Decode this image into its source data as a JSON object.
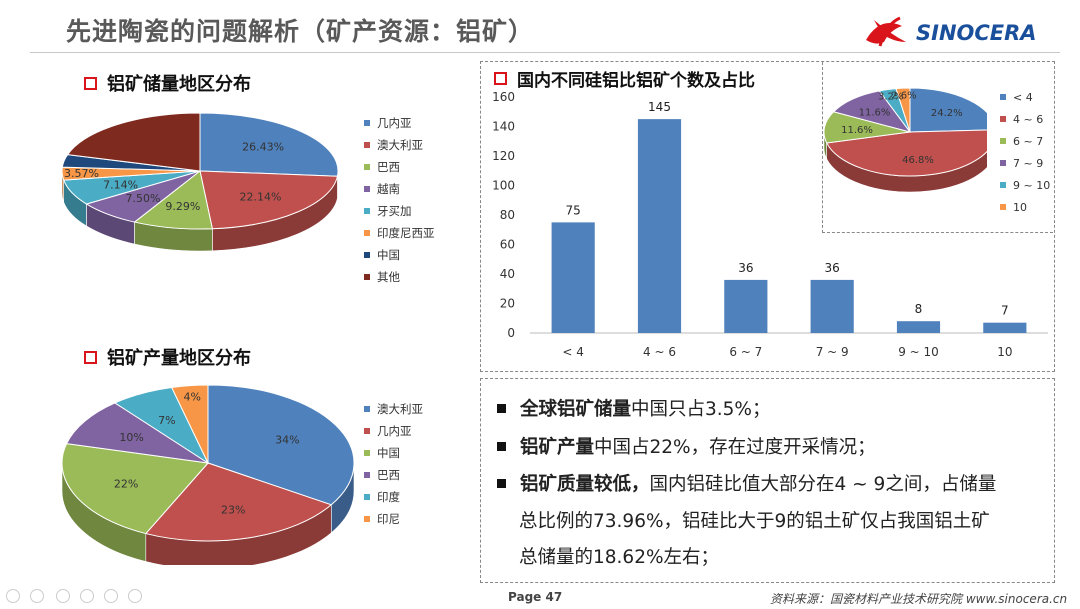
{
  "header": {
    "title": "先进陶瓷的问题解析（矿产资源：铝矿）",
    "logo_text": "SINOCERA"
  },
  "colors": {
    "blue": "#4f81bd",
    "red": "#c0504d",
    "green": "#9bbb59",
    "purple": "#8064a2",
    "cyan": "#4bacc6",
    "orange": "#f79646",
    "navy": "#1f497d",
    "maroon": "#7f2a1e",
    "accent_red": "#d9141b"
  },
  "section1": {
    "title": "铝矿储量地区分布"
  },
  "section2": {
    "title": "铝矿产量地区分布"
  },
  "section3": {
    "title": "国内不同硅铝比铝矿个数及占比"
  },
  "chart_data": [
    {
      "id": "reserves_pie",
      "type": "pie",
      "title": "铝矿储量地区分布",
      "labels": [
        "几内亚",
        "澳大利亚",
        "巴西",
        "越南",
        "牙买加",
        "印度尼西亚",
        "中国",
        "其他"
      ],
      "values": [
        26.43,
        22.14,
        9.29,
        7.5,
        7.14,
        3.57,
        3.5,
        20.43
      ],
      "value_labels": [
        "26.43%",
        "22.14%",
        "9.29%",
        "7.50%",
        "7.14%",
        "3.57%",
        "",
        ""
      ],
      "colors": [
        "#4f81bd",
        "#c0504d",
        "#9bbb59",
        "#8064a2",
        "#4bacc6",
        "#f79646",
        "#1f497d",
        "#7f2a1e"
      ],
      "legend": "right"
    },
    {
      "id": "production_pie",
      "type": "pie",
      "title": "铝矿产量地区分布",
      "labels": [
        "澳大利亚",
        "几内亚",
        "中国",
        "巴西",
        "印度",
        "印尼"
      ],
      "values": [
        34,
        23,
        22,
        10,
        7,
        4
      ],
      "value_labels": [
        "34%",
        "23%",
        "22%",
        "10%",
        "7%",
        "4%"
      ],
      "colors": [
        "#4f81bd",
        "#c0504d",
        "#9bbb59",
        "#8064a2",
        "#4bacc6",
        "#f79646"
      ],
      "legend": "right"
    },
    {
      "id": "ratio_bar",
      "type": "bar",
      "title": "国内不同硅铝比铝矿个数及占比",
      "categories": [
        "< 4",
        "4 ~ 6",
        "6 ~ 7",
        "7 ~ 9",
        "9 ~ 10",
        "10"
      ],
      "values": [
        75,
        145,
        36,
        36,
        8,
        7
      ],
      "ylim": [
        0,
        160
      ],
      "yticks": [
        0,
        20,
        40,
        60,
        80,
        100,
        120,
        140,
        160
      ],
      "color": "#4f81bd",
      "grid": false
    },
    {
      "id": "ratio_pie",
      "type": "pie",
      "labels": [
        "< 4",
        "4 ~ 6",
        "6 ~ 7",
        "7 ~ 9",
        "9 ~ 10",
        "10"
      ],
      "values": [
        24.2,
        46.8,
        11.6,
        11.6,
        3.2,
        2.6
      ],
      "value_labels": [
        "24.2%",
        "46.8%",
        "11.6%",
        "11.6%",
        "3.2%",
        "2.6%"
      ],
      "colors": [
        "#4f81bd",
        "#c0504d",
        "#9bbb59",
        "#8064a2",
        "#4bacc6",
        "#f79646"
      ],
      "legend": "right"
    }
  ],
  "bullets": [
    {
      "bold": "全球铝矿储量",
      "text": "中国只占3.5%；"
    },
    {
      "bold": "铝矿产量",
      "text": "中国占22%，存在过度开采情况；"
    },
    {
      "bold": "铝矿质量较低，",
      "text": "国内铝硅比值大部分在4 ~ 9之间，占储量"
    }
  ],
  "bullet_cont": [
    "总比例的73.96%，铝硅比大于9的铝土矿仅占我国铝土矿",
    "总储量的18.62%左右；"
  ],
  "footer": {
    "page": "Page 47",
    "source": "资料来源：国瓷材料产业技术研究院  www.sinocera.cn"
  }
}
